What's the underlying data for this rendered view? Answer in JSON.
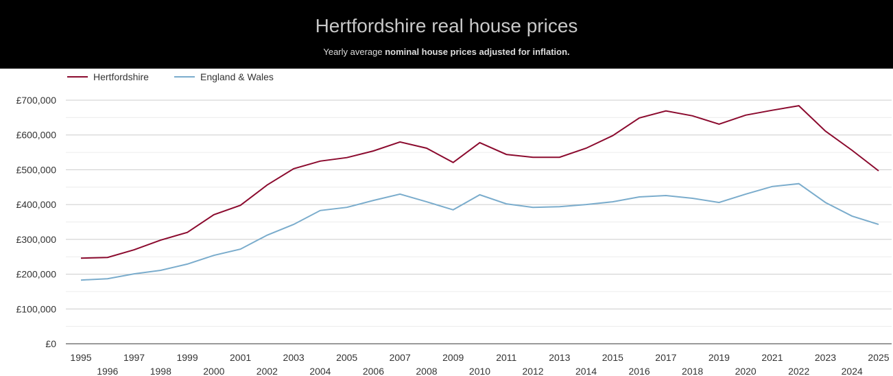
{
  "chart_data": {
    "type": "line",
    "title": "Hertfordshire real house prices",
    "subtitle_prefix": "Yearly average ",
    "subtitle_bold": "nominal house prices adjusted for inflation.",
    "xlabel": "",
    "ylabel": "",
    "ylim": [
      0,
      700000
    ],
    "yticks": [
      0,
      100000,
      200000,
      300000,
      400000,
      500000,
      600000,
      700000
    ],
    "ytick_labels": [
      "£0",
      "£100,000",
      "£200,000",
      "£300,000",
      "£400,000",
      "£500,000",
      "£600,000",
      "£700,000"
    ],
    "grid": true,
    "legend_position": "top-left",
    "x": [
      1995,
      1996,
      1997,
      1998,
      1999,
      2000,
      2001,
      2002,
      2003,
      2004,
      2005,
      2006,
      2007,
      2008,
      2009,
      2010,
      2011,
      2012,
      2013,
      2014,
      2015,
      2016,
      2017,
      2018,
      2019,
      2020,
      2021,
      2022,
      2023,
      2024,
      2025
    ],
    "series": [
      {
        "name": "Hertfordshire",
        "color": "#8b0a2e",
        "values": [
          246000,
          248000,
          270000,
          298000,
          320000,
          371000,
          398000,
          456000,
          503000,
          525000,
          535000,
          554000,
          580000,
          562000,
          521000,
          578000,
          544000,
          536000,
          536000,
          562000,
          598000,
          649000,
          669000,
          655000,
          631000,
          657000,
          671000,
          684000,
          611000,
          556000,
          497000
        ]
      },
      {
        "name": "England & Wales",
        "color": "#7aaccc",
        "values": [
          183000,
          187000,
          201000,
          211000,
          229000,
          254000,
          272000,
          312000,
          343000,
          383000,
          392000,
          412000,
          430000,
          408000,
          385000,
          428000,
          402000,
          392000,
          394000,
          400000,
          408000,
          422000,
          426000,
          418000,
          406000,
          430000,
          452000,
          460000,
          406000,
          367000,
          343000
        ]
      }
    ]
  }
}
